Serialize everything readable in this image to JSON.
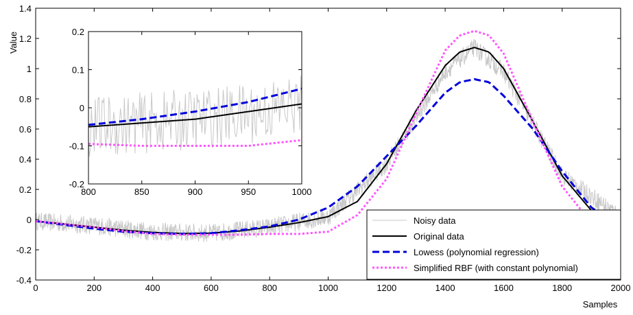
{
  "chart_data": [
    {
      "type": "line",
      "title": "",
      "xlabel": "Samples",
      "ylabel": "Value",
      "xlim": [
        0,
        2000
      ],
      "ylim": [
        -0.4,
        1.4
      ],
      "xticks": [
        "0",
        "200",
        "400",
        "600",
        "800",
        "1000",
        "1200",
        "1400",
        "1600",
        "1800",
        "2000"
      ],
      "yticks": [
        "-0.4",
        "-0.2",
        "0",
        "0.2",
        "0.4",
        "0.6",
        "0.8",
        "1",
        "1.2",
        "1.4"
      ],
      "grid": false,
      "legend_position": "bottom-right",
      "series": [
        {
          "name": "Noisy data",
          "color": "#c8c8c8",
          "style": "solid-thin",
          "x": [
            0,
            200,
            400,
            600,
            800,
            1000,
            1200,
            1400,
            1500,
            1600,
            1800,
            2000
          ],
          "y": [
            -0.01,
            -0.04,
            -0.08,
            -0.09,
            -0.05,
            0.02,
            0.37,
            0.98,
            1.14,
            0.98,
            0.29,
            0.02
          ],
          "noise_amplitude": 0.06
        },
        {
          "name": "Original data",
          "color": "#000000",
          "style": "solid",
          "x": [
            0,
            100,
            200,
            300,
            400,
            500,
            600,
            700,
            800,
            900,
            1000,
            1100,
            1200,
            1300,
            1400,
            1450,
            1500,
            1550,
            1600,
            1700,
            1800,
            1900,
            2000
          ],
          "y": [
            -0.01,
            -0.03,
            -0.05,
            -0.07,
            -0.085,
            -0.092,
            -0.09,
            -0.075,
            -0.05,
            -0.02,
            0.02,
            0.12,
            0.37,
            0.72,
            1.02,
            1.11,
            1.14,
            1.11,
            1.0,
            0.65,
            0.29,
            0.06,
            0.02
          ]
        },
        {
          "name": "Lowess (polynomial regression)",
          "color": "#0000dd",
          "style": "dashed",
          "x": [
            0,
            100,
            200,
            300,
            400,
            500,
            600,
            700,
            800,
            900,
            1000,
            1100,
            1200,
            1300,
            1400,
            1450,
            1500,
            1550,
            1600,
            1700,
            1800,
            1900,
            2000
          ],
          "y": [
            -0.01,
            -0.035,
            -0.06,
            -0.08,
            -0.09,
            -0.095,
            -0.09,
            -0.07,
            -0.045,
            0.0,
            0.08,
            0.22,
            0.42,
            0.62,
            0.84,
            0.91,
            0.93,
            0.91,
            0.82,
            0.6,
            0.32,
            0.08,
            -0.05
          ]
        },
        {
          "name": "Simplified RBF (with constant polynomial)",
          "color": "#ff55ff",
          "style": "dotted",
          "x": [
            0,
            100,
            200,
            300,
            400,
            500,
            600,
            700,
            800,
            900,
            1000,
            1100,
            1200,
            1300,
            1400,
            1450,
            1500,
            1550,
            1600,
            1700,
            1800,
            1900,
            2000
          ],
          "y": [
            -0.01,
            -0.03,
            -0.05,
            -0.075,
            -0.095,
            -0.1,
            -0.1,
            -0.1,
            -0.095,
            -0.095,
            -0.08,
            0.03,
            0.27,
            0.7,
            1.12,
            1.22,
            1.25,
            1.22,
            1.1,
            0.65,
            0.22,
            -0.02,
            -0.16
          ]
        }
      ]
    },
    {
      "type": "line",
      "title": "",
      "xlabel": "",
      "ylabel": "",
      "xlim": [
        800,
        1000
      ],
      "ylim": [
        -0.2,
        0.2
      ],
      "xticks": [
        "800",
        "850",
        "900",
        "950",
        "1000"
      ],
      "yticks": [
        "-0.2",
        "-0.1",
        "0",
        "0.1",
        "0.2"
      ],
      "grid": false,
      "series": [
        {
          "name": "Noisy data",
          "color": "#c8c8c8",
          "x": [
            800,
            850,
            900,
            950,
            1000
          ],
          "y": [
            -0.05,
            -0.04,
            -0.03,
            -0.015,
            0.01
          ],
          "noise_amplitude": 0.08
        },
        {
          "name": "Original data",
          "color": "#000000",
          "x": [
            800,
            850,
            900,
            950,
            1000
          ],
          "y": [
            -0.05,
            -0.04,
            -0.03,
            -0.01,
            0.01
          ]
        },
        {
          "name": "Lowess (polynomial regression)",
          "color": "#0000dd",
          "x": [
            800,
            850,
            900,
            950,
            1000
          ],
          "y": [
            -0.045,
            -0.03,
            -0.01,
            0.015,
            0.05
          ]
        },
        {
          "name": "Simplified RBF (with constant polynomial)",
          "color": "#ff55ff",
          "x": [
            800,
            850,
            900,
            950,
            1000
          ],
          "y": [
            -0.095,
            -0.1,
            -0.1,
            -0.1,
            -0.085
          ]
        }
      ]
    }
  ]
}
